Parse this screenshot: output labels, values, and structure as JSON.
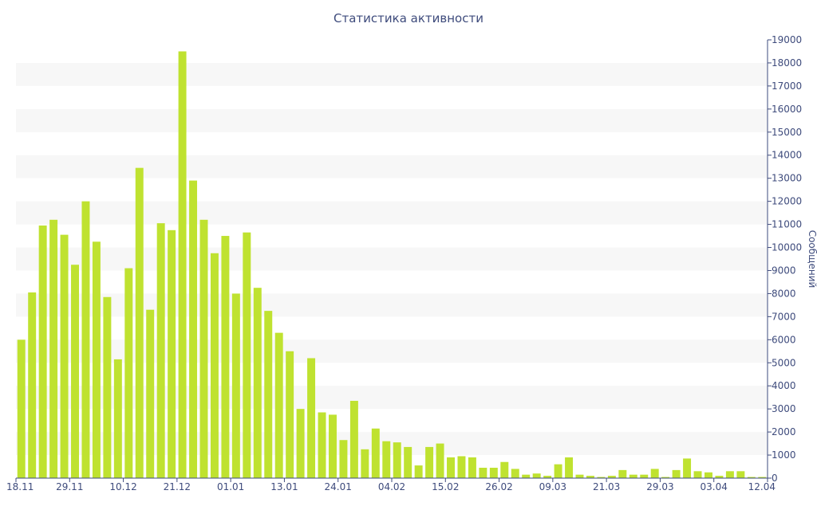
{
  "chart_data": {
    "type": "bar",
    "title": "Статистика активности",
    "xlabel": "",
    "ylabel": "Сообщений",
    "ylim": [
      0,
      19000
    ],
    "y_ticks": [
      0,
      1000,
      2000,
      3000,
      4000,
      5000,
      6000,
      7000,
      8000,
      9000,
      10000,
      11000,
      12000,
      13000,
      14000,
      15000,
      16000,
      17000,
      18000,
      19000
    ],
    "x_tick_labels": [
      "18.11",
      "29.11",
      "10.12",
      "21.12",
      "01.01",
      "13.01",
      "24.01",
      "04.02",
      "15.02",
      "26.02",
      "09.03",
      "21.03",
      "29.03",
      "03.04",
      "12.04"
    ],
    "values": [
      6000,
      8050,
      10950,
      11200,
      10550,
      9250,
      12000,
      10250,
      7850,
      5150,
      9100,
      13450,
      7300,
      11050,
      10750,
      18500,
      12900,
      11200,
      9750,
      10500,
      8000,
      10650,
      8250,
      7250,
      6300,
      5500,
      3000,
      5200,
      2850,
      2750,
      1650,
      3350,
      1250,
      2150,
      1600,
      1550,
      1350,
      550,
      1350,
      1500,
      900,
      950,
      900,
      450,
      450,
      700,
      400,
      150,
      200,
      100,
      600,
      900,
      150,
      100,
      50,
      100,
      350,
      150,
      150,
      400,
      50,
      350,
      850,
      300,
      250,
      100,
      300,
      300,
      50,
      50
    ],
    "bar_color": "#bfe230",
    "band_color": "#f7f7f7",
    "axis_color": "#3e4b7c",
    "grid": "alternating-bands",
    "y_axis_position": "right"
  }
}
